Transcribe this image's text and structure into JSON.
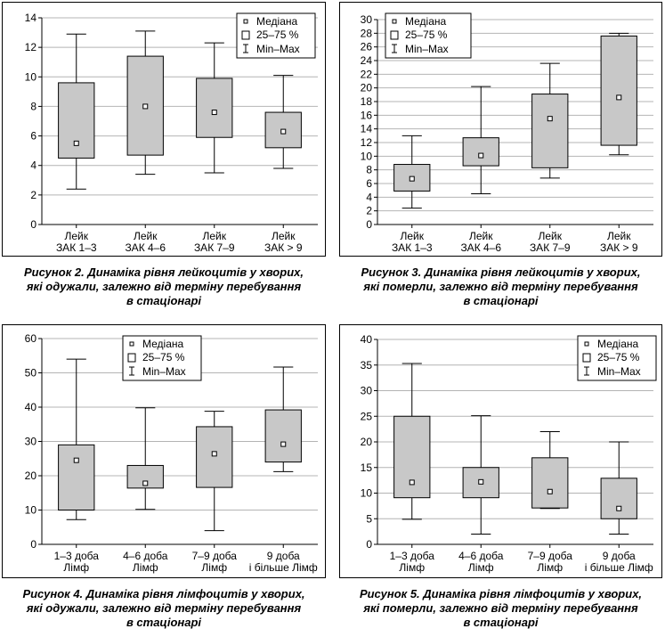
{
  "legend": {
    "median": "Медіана",
    "iqr": "25–75 %",
    "range": "Min–Max"
  },
  "captions": [
    {
      "lines": [
        "Рисунок 2.  Динаміка рівня лейкоцитів у хворих,",
        "які одужали, залежно від терміну перебування",
        "в стаціонарі"
      ]
    },
    {
      "lines": [
        "Рисунок 3.  Динаміка рівня лейкоцитів у хворих,",
        "які померли, залежно від терміну перебування",
        "в стаціонарі"
      ]
    },
    {
      "lines": [
        "Рисунок 4.  Динаміка рівня лімфоцитів у хворих,",
        "які одужали, залежно від терміну перебування",
        "в стаціонарі"
      ]
    },
    {
      "lines": [
        "Рисунок 5.  Динаміка рівня лімфоцитів у хворих,",
        "які померли, залежно від терміну перебування",
        "в стаціонарі"
      ]
    }
  ],
  "colors": {
    "box_fill": "#c8c8c8",
    "grid": "#b4b4b4",
    "stroke": "#000000"
  },
  "chart_data": [
    {
      "type": "box",
      "ylim": [
        0,
        14
      ],
      "yticks": [
        0,
        2,
        4,
        6,
        8,
        10,
        12,
        14
      ],
      "grid": true,
      "legend_position": "top-right",
      "categories": [
        [
          "Лейк",
          "ЗАК 1–3"
        ],
        [
          "Лейк",
          "ЗАК 4–6"
        ],
        [
          "Лейк",
          "ЗАК 7–9"
        ],
        [
          "Лейк",
          "ЗАК > 9"
        ]
      ],
      "boxes": [
        {
          "min": 2.4,
          "q1": 4.5,
          "median": 5.5,
          "q3": 9.6,
          "max": 12.9
        },
        {
          "min": 3.4,
          "q1": 4.7,
          "median": 8.0,
          "q3": 11.4,
          "max": 13.1
        },
        {
          "min": 3.5,
          "q1": 5.9,
          "median": 7.6,
          "q3": 9.9,
          "max": 12.3
        },
        {
          "min": 3.8,
          "q1": 5.2,
          "median": 6.3,
          "q3": 7.6,
          "max": 10.1
        }
      ]
    },
    {
      "type": "box",
      "ylim": [
        0,
        30
      ],
      "yticks": [
        0,
        2,
        4,
        6,
        8,
        10,
        12,
        14,
        16,
        18,
        20,
        22,
        24,
        26,
        28,
        30
      ],
      "grid": true,
      "legend_position": "top-right",
      "categories": [
        [
          "Лейк",
          "ЗАК 1–3"
        ],
        [
          "Лейк",
          "ЗАК 4–6"
        ],
        [
          "Лейк",
          "ЗАК 7–9"
        ],
        [
          "Лейк",
          "ЗАК > 9"
        ]
      ],
      "boxes": [
        {
          "min": 2.4,
          "q1": 4.9,
          "median": 6.7,
          "q3": 8.8,
          "max": 13.0
        },
        {
          "min": 4.5,
          "q1": 8.6,
          "median": 10.1,
          "q3": 12.7,
          "max": 20.2
        },
        {
          "min": 6.8,
          "q1": 8.3,
          "median": 15.5,
          "q3": 19.1,
          "max": 23.6
        },
        {
          "min": 10.2,
          "q1": 11.6,
          "median": 18.6,
          "q3": 27.6,
          "max": 28.0
        }
      ]
    },
    {
      "type": "box",
      "ylim": [
        0,
        60
      ],
      "yticks": [
        0,
        10,
        20,
        30,
        40,
        50,
        60
      ],
      "grid": true,
      "legend_position": "top-right",
      "categories": [
        [
          "1–3 доба",
          "Лімф"
        ],
        [
          "4–6 доба",
          "Лімф"
        ],
        [
          "7–9 доба",
          "Лімф"
        ],
        [
          "9 доба",
          "і більше Лімф"
        ]
      ],
      "boxes": [
        {
          "min": 7.2,
          "q1": 10.0,
          "median": 24.5,
          "q3": 29.0,
          "max": 54.0
        },
        {
          "min": 10.2,
          "q1": 16.4,
          "median": 17.8,
          "q3": 23.0,
          "max": 39.8
        },
        {
          "min": 4.0,
          "q1": 16.6,
          "median": 26.4,
          "q3": 34.3,
          "max": 38.8
        },
        {
          "min": 21.2,
          "q1": 24.0,
          "median": 29.2,
          "q3": 39.2,
          "max": 51.7
        }
      ]
    },
    {
      "type": "box",
      "ylim": [
        0,
        40
      ],
      "yticks": [
        0,
        5,
        10,
        15,
        20,
        25,
        30,
        35,
        40
      ],
      "grid": true,
      "legend_position": "top-right",
      "categories": [
        [
          "1–3 доба",
          "Лімф"
        ],
        [
          "4–6 доба",
          "Лімф"
        ],
        [
          "7–9 доба",
          "Лімф"
        ],
        [
          "9 доба",
          "і більше Лімф"
        ]
      ],
      "boxes": [
        {
          "min": 4.9,
          "q1": 9.1,
          "median": 12.1,
          "q3": 25.0,
          "max": 35.3
        },
        {
          "min": 2.0,
          "q1": 9.1,
          "median": 12.2,
          "q3": 15.0,
          "max": 25.1
        },
        {
          "min": 7.0,
          "q1": 7.1,
          "median": 10.3,
          "q3": 16.9,
          "max": 22.0
        },
        {
          "min": 2.0,
          "q1": 5.0,
          "median": 7.0,
          "q3": 12.9,
          "max": 20.0
        }
      ]
    }
  ]
}
